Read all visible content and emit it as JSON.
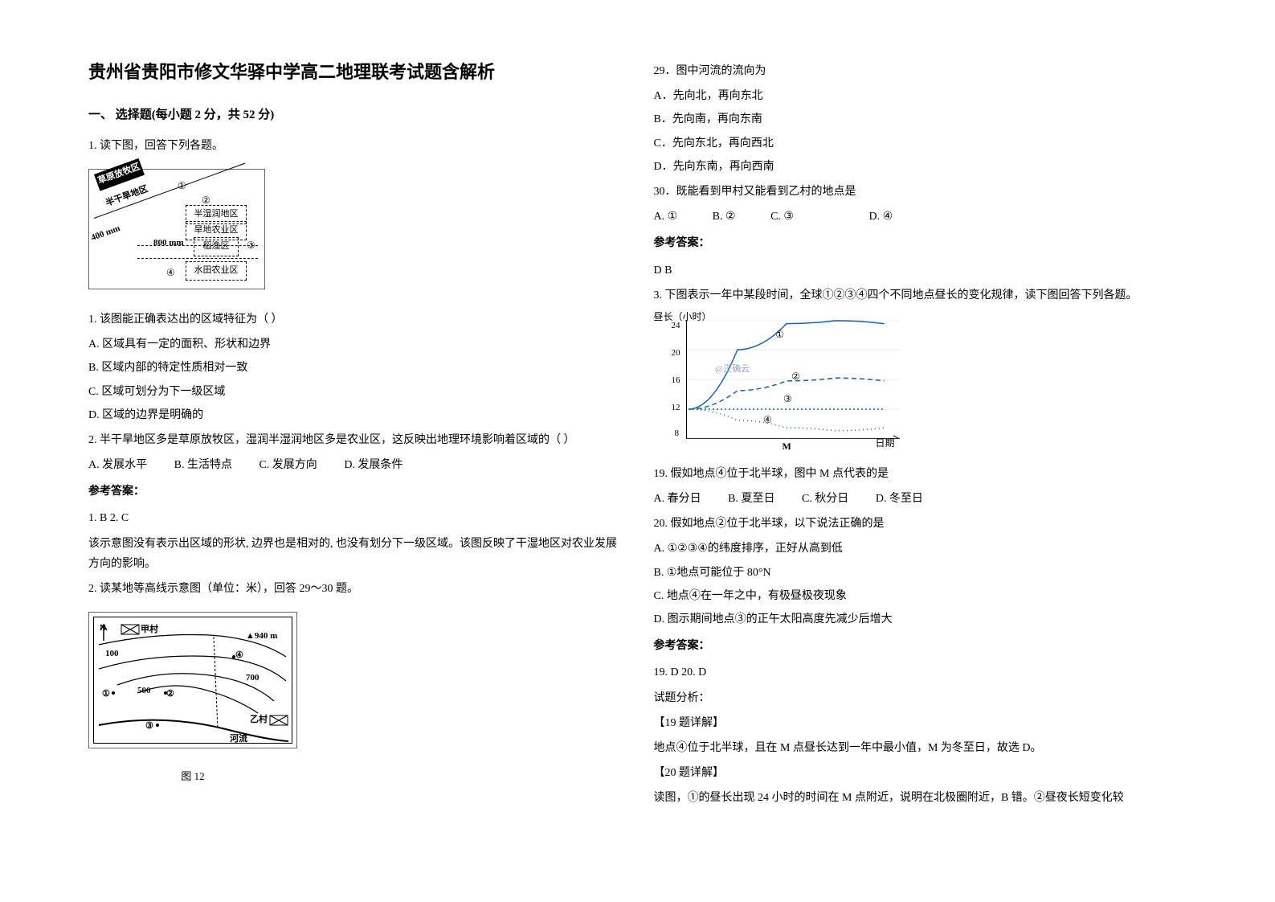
{
  "title": "贵州省贵阳市修文华驿中学高二地理联考试题含解析",
  "section1_heading": "一、 选择题(每小题 2 分，共 52 分)",
  "q1_intro": "1. 读下图，回答下列各题。",
  "diagram1": {
    "labels": {
      "top_left": "草原放牧区",
      "mid_left": "半干旱地区",
      "mid_right": "半湿润地区",
      "row1": "旱地农业区",
      "row2": "稻渔区",
      "row3": "水田农业区",
      "line400": "400 mm",
      "line800": "800 mm"
    },
    "circles": [
      "①",
      "②",
      "③",
      "④"
    ]
  },
  "q1_sub1": "1.  该图能正确表达出的区域特征为（          ）",
  "q1_opts": {
    "A": "A.  区域具有一定的面积、形状和边界",
    "B": "B.  区域内部的特定性质相对一致",
    "C": "C.  区域可划分为下一级区域",
    "D": "D.  区域的边界是明确的"
  },
  "q1_sub2": "2.  半干旱地区多是草原放牧区，湿润半湿润地区多是农业区，这反映出地理环境影响着区域的（              ）",
  "q1_sub2_opts": {
    "A": "A. 发展水平",
    "B": "B. 生活特点",
    "C": "C. 发展方向",
    "D": "D. 发展条件"
  },
  "ans_label": "参考答案：",
  "q1_ans": "1.  B          2.  C",
  "q1_explain": "该示意图没有表示出区域的形状, 边界也是相对的, 也没有划分下一级区域。该图反映了干湿地区对农业发展方向的影响。",
  "q2_intro": "2. 读某地等高线示意图（单位：米），回答 29～30 题。",
  "diagram2": {
    "labels": {
      "N": "N",
      "jiacun": "甲村",
      "peak": "▲940 m",
      "c100": "100",
      "c500": "500",
      "c700": "700",
      "yicun": "乙村",
      "river": "河流",
      "n1": "①",
      "n2": "②",
      "n3": "③",
      "n4": "④"
    },
    "caption": "图 12"
  },
  "q29": "29．图中河流的流向为",
  "q29_opts": {
    "A": "A．先向北，再向东北",
    "B": "B．先向南，再向东南",
    "C": "C．先向东北，再向西北",
    "D": "D．先向东南，再向西南"
  },
  "q30": "30．既能看到甲村又能看到乙村的地点是",
  "q30_opts": {
    "A": "A. ①",
    "B": "B. ②",
    "C": "C. ③",
    "D": "D. ④"
  },
  "q2_ans": "D  B",
  "q3_intro": "3. 下图表示一年中某段时间，全球①②③④四个不同地点昼长的变化规律，读下图回答下列各题。",
  "diagram3": {
    "type": "line",
    "y_title": "昼长（小时）",
    "y_ticks": [
      8,
      12,
      16,
      20,
      24
    ],
    "x_label_right": "日期",
    "x_label_mid": "M",
    "series": {
      "s1": {
        "label": "①",
        "color": "#1a5fb4",
        "style": "solid",
        "ys": [
          12,
          20,
          23.5,
          23.9,
          23.5
        ]
      },
      "s2": {
        "label": "②",
        "color": "#1a5fb4",
        "style": "dash",
        "ys": [
          12,
          14.5,
          15.8,
          16.2,
          15.8
        ]
      },
      "s3": {
        "label": "③",
        "color": "#1a5fb4",
        "style": "dot",
        "ys": [
          12,
          12,
          12,
          12,
          12
        ]
      },
      "s4": {
        "label": "④",
        "color": "#1a5fb4",
        "style": "dot2",
        "ys": [
          12,
          10.5,
          9.5,
          9.1,
          9.5
        ]
      }
    },
    "watermark": "@正确云",
    "background": "#ffffff",
    "axis_color": "#000000",
    "grid_color": "#e0e0e0"
  },
  "q19": "19. 假如地点④位于北半球，图中 M 点代表的是",
  "q19_opts": {
    "A": "A. 春分日",
    "B": "B. 夏至日",
    "C": "C. 秋分日",
    "D": "D. 冬至日"
  },
  "q20": "20. 假如地点②位于北半球，以下说法正确的是",
  "q20_opts": {
    "A": "A. ①②③④的纬度排序，正好从高到低",
    "B": "B. ①地点可能位于 80°N",
    "C": "C. 地点④在一年之中，有极昼极夜现象",
    "D": "D. 图示期间地点③的正午太阳高度先减少后增大"
  },
  "q3_ans": "19. D   20. D",
  "analysis_label": "试题分析：",
  "q19_detail_h": "【19 题详解】",
  "q19_detail": "地点④位于北半球，且在 M 点昼长达到一年中最小值，M 为冬至日，故选 D。",
  "q20_detail_h": "【20 题详解】",
  "q20_detail": "读图，①的昼长出现 24 小时的时间在 M 点附近，说明在北极圈附近，B 错。②昼夜长短变化较"
}
